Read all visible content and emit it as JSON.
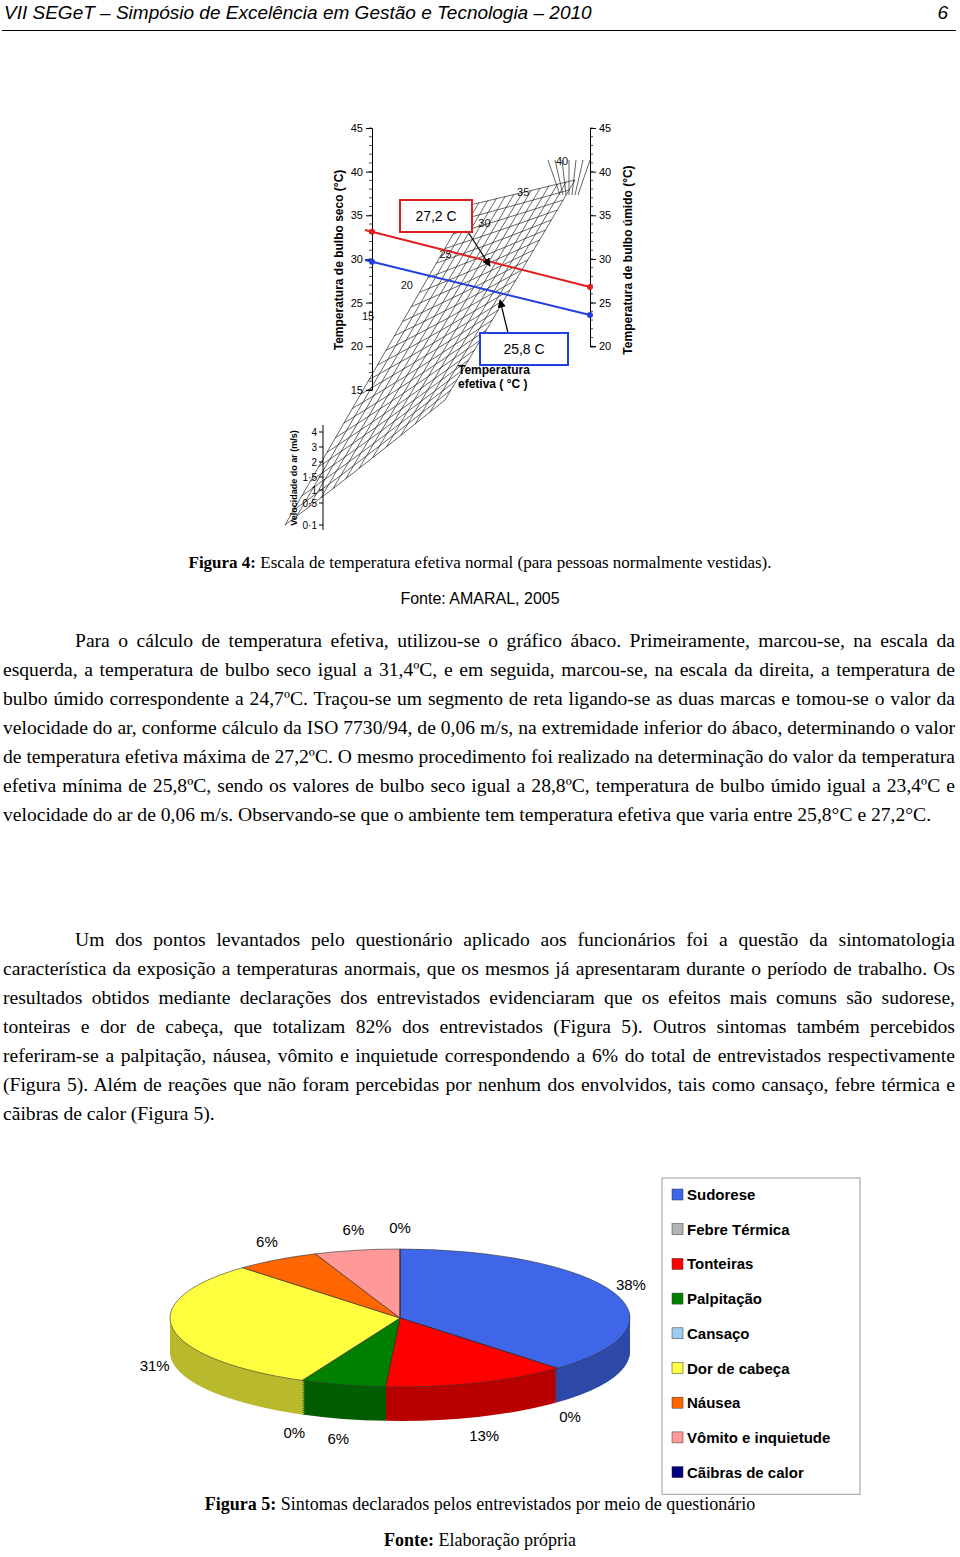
{
  "header": {
    "title": "VII SEGeT – Simpósio de Excelência em Gestão e Tecnologia – 2010",
    "page": "6"
  },
  "figure4": {
    "left_axis_label": "Temperatura de bulbo seco (°C)",
    "right_axis_label": "Temperatura de bulbo úmido (°C)",
    "velocity_label": "Velocidade do ar (m/s)",
    "effective_label": [
      "Temperatura",
      "efetiva ( °C )"
    ],
    "left_ticks": [
      45,
      40,
      35,
      30,
      25,
      20,
      15
    ],
    "right_ticks": [
      45,
      40,
      35,
      30,
      25,
      20
    ],
    "velocity_ticks": [
      "4",
      "3",
      "2",
      "1·5",
      "1",
      "0·5",
      "0·1"
    ],
    "effective_ticks": [
      15,
      20,
      25,
      30,
      35,
      40
    ],
    "max_box": "27,2 C",
    "min_box": "25,8 C",
    "caption_label": "Figura 4:",
    "caption": "Escala de temperatura efetiva normal (para pessoas normalmente vestidas).",
    "source": "Fonte: AMARAL, 2005"
  },
  "paragraphs": [
    "Para o cálculo de temperatura efetiva, utilizou-se o gráfico ábaco. Primeiramente, marcou-se, na escala da esquerda, a temperatura de bulbo seco igual a 31,4ºC, e em seguida, marcou-se, na escala da direita, a temperatura de bulbo úmido correspondente a 24,7ºC. Traçou-se um segmento de reta ligando-se as duas marcas e tomou-se o valor da velocidade do ar, conforme cálculo da ISO 7730/94, de 0,06 m/s, na extremidade inferior do ábaco, determinando o valor de temperatura efetiva máxima de 27,2ºC. O mesmo procedimento foi realizado na determinação do valor da temperatura efetiva mínima de 25,8ºC, sendo os valores de bulbo seco igual a 28,8ºC, temperatura de bulbo úmido igual a 23,4ºC e velocidade do ar de 0,06 m/s. Observando-se que o ambiente tem temperatura efetiva que varia entre 25,8°C e 27,2°C.",
    "Um dos pontos levantados pelo questionário aplicado aos funcionários foi a questão da sintomatologia característica da exposição a temperaturas anormais, que os mesmos já apresentaram durante o período de trabalho. Os resultados obtidos mediante declarações dos entrevistados evidenciaram que os efeitos mais comuns são sudorese, tonteiras e dor de cabeça, que totalizam 82% dos entrevistados (Figura 5). Outros sintomas também percebidos referiram-se a palpitação, náusea, vômito e inquietude correspondendo a 6% do total de entrevistados respectivamente (Figura 5). Além de reações que não foram percebidas por nenhum dos envolvidos, tais como cansaço, febre térmica e cãibras de calor (Figura 5)."
  ],
  "chart_data": {
    "type": "pie",
    "categories": [
      "Sudorese",
      "Febre Térmica",
      "Tonteiras",
      "Palpitação",
      "Cansaço",
      "Dor de cabeça",
      "Náusea",
      "Vômito e inquietude",
      "Cãibras de calor"
    ],
    "values": [
      38,
      0,
      13,
      6,
      0,
      31,
      6,
      6,
      0
    ],
    "value_labels": [
      "38%",
      "0%",
      "13%",
      "6%",
      "0%",
      "31%",
      "6%",
      "6%",
      "0%"
    ],
    "colors": [
      "#3f66e8",
      "#b4b4b4",
      "#ff0000",
      "#008000",
      "#9ecbf0",
      "#ffff40",
      "#ff6600",
      "#ff9999",
      "#000080"
    ],
    "data_labels": true,
    "legend": "right"
  },
  "figure5": {
    "caption_label": "Figura 5:",
    "caption": "Sintomas declarados pelos entrevistados por meio de questionário",
    "source_label": "Fonte:",
    "source": "Elaboração própria"
  }
}
